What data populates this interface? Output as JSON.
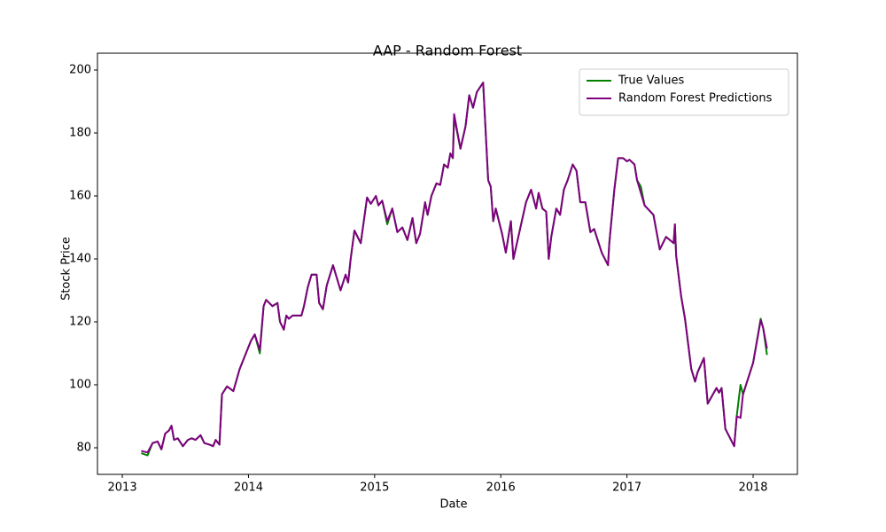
{
  "chart_data": {
    "type": "line",
    "title": "AAP - Random Forest",
    "xlabel": "Date",
    "ylabel": "Stock Price",
    "x": [
      2013.15,
      2013.2,
      2013.24,
      2013.28,
      2013.31,
      2013.34,
      2013.37,
      2013.39,
      2013.41,
      2013.44,
      2013.48,
      2013.52,
      2013.55,
      2013.58,
      2013.62,
      2013.65,
      2013.69,
      2013.72,
      2013.74,
      2013.77,
      2013.79,
      2013.83,
      2013.88,
      2013.93,
      2013.97,
      2014.02,
      2014.05,
      2014.09,
      2014.12,
      2014.14,
      2014.19,
      2014.23,
      2014.25,
      2014.28,
      2014.3,
      2014.32,
      2014.35,
      2014.42,
      2014.44,
      2014.47,
      2014.5,
      2014.54,
      2014.56,
      2014.59,
      2014.62,
      2014.67,
      2014.73,
      2014.77,
      2014.79,
      2014.81,
      2014.84,
      2014.89,
      2014.94,
      2014.97,
      2015.01,
      2015.03,
      2015.06,
      2015.1,
      2015.14,
      2015.18,
      2015.22,
      2015.26,
      2015.3,
      2015.33,
      2015.36,
      2015.4,
      2015.42,
      2015.45,
      2015.49,
      2015.52,
      2015.55,
      2015.58,
      2015.6,
      2015.62,
      2015.63,
      2015.68,
      2015.72,
      2015.75,
      2015.78,
      2015.81,
      2015.86,
      2015.9,
      2015.92,
      2015.94,
      2015.96,
      2016.01,
      2016.04,
      2016.08,
      2016.1,
      2016.15,
      2016.2,
      2016.24,
      2016.28,
      2016.3,
      2016.33,
      2016.36,
      2016.38,
      2016.4,
      2016.44,
      2016.47,
      2016.5,
      2016.53,
      2016.57,
      2016.6,
      2016.63,
      2016.67,
      2016.71,
      2016.74,
      2016.8,
      2016.85,
      2016.86,
      2016.9,
      2016.93,
      2016.97,
      2017.0,
      2017.02,
      2017.06,
      2017.08,
      2017.11,
      2017.14,
      2017.21,
      2017.26,
      2017.31,
      2017.37,
      2017.38,
      2017.39,
      2017.43,
      2017.46,
      2017.51,
      2017.54,
      2017.56,
      2017.61,
      2017.64,
      2017.71,
      2017.73,
      2017.75,
      2017.78,
      2017.85,
      2017.87,
      2017.9,
      2017.92,
      2018.0,
      2018.06,
      2018.08,
      2018.11
    ],
    "series": [
      {
        "name": "True Values",
        "color": "#008000",
        "values": [
          78.3,
          77.6,
          81.5,
          82,
          79.5,
          84.5,
          85.5,
          87,
          82.5,
          83,
          80.5,
          82.5,
          83,
          82.5,
          84,
          81.5,
          81,
          80.5,
          82.5,
          81,
          97,
          99.5,
          98,
          105,
          109,
          114,
          116,
          110,
          125,
          127,
          125,
          126,
          120,
          117.5,
          122,
          121,
          122,
          122,
          125,
          131,
          135,
          135,
          126,
          124,
          131.5,
          138,
          130,
          135,
          132.5,
          140,
          149,
          145,
          159.5,
          157.5,
          160,
          157,
          158.5,
          151,
          156,
          148.5,
          150,
          146,
          153,
          145,
          148,
          158,
          154,
          160,
          164,
          163.5,
          170,
          169,
          173.5,
          172,
          185,
          175,
          182,
          192,
          188,
          193,
          196,
          165,
          163,
          152,
          156,
          148,
          142,
          152,
          140,
          149,
          158,
          162,
          156,
          161,
          156,
          155,
          140,
          147,
          156,
          154,
          162,
          165,
          170,
          168,
          158,
          158,
          148.5,
          149.5,
          142,
          138,
          145,
          162,
          172,
          172,
          171,
          171.5,
          170,
          165,
          163,
          157,
          154,
          143,
          147,
          145,
          151,
          141,
          128,
          121,
          105,
          101,
          104,
          108.5,
          94,
          99,
          97.5,
          99,
          86,
          80.5,
          90,
          100,
          97,
          107,
          121,
          118,
          109.5
        ]
      },
      {
        "name": "Random Forest Predictions",
        "color": "#800080",
        "values": [
          79,
          78.5,
          81.5,
          82,
          79.5,
          84.5,
          85.5,
          87,
          82.5,
          83,
          80.5,
          82.5,
          83,
          82.5,
          84,
          81.5,
          81,
          80.5,
          82.5,
          81,
          97,
          99.5,
          98,
          105,
          109,
          114,
          116,
          111,
          125,
          127,
          125,
          126,
          120,
          117.5,
          122,
          121,
          122,
          122,
          125,
          131,
          135,
          135,
          126,
          124,
          131.5,
          138,
          130,
          135,
          132.5,
          140,
          149,
          145,
          159.5,
          157.5,
          160,
          157,
          158.5,
          152,
          156,
          148.5,
          150,
          146,
          153,
          145,
          148,
          158,
          154,
          160,
          164,
          163.5,
          170,
          169,
          173.5,
          172,
          186,
          175,
          182,
          192,
          188,
          193,
          196,
          165,
          163,
          152,
          156,
          148,
          142,
          152,
          140,
          149,
          158,
          162,
          156,
          161,
          156,
          155,
          140,
          147,
          156,
          154,
          162,
          165,
          170,
          168,
          158,
          158,
          148.5,
          149.5,
          142,
          138,
          145,
          162,
          172,
          172,
          171,
          171.5,
          170,
          165,
          161,
          157,
          154,
          143,
          147,
          145,
          151,
          141,
          128,
          121,
          105,
          101,
          104,
          108.5,
          94,
          99,
          97.5,
          99,
          86,
          80.5,
          90,
          89.5,
          97,
          107,
          120.5,
          118,
          111.5
        ]
      }
    ],
    "xlim": [
      2012.803,
      2018.351
    ],
    "xticks": [
      2013,
      2014,
      2015,
      2016,
      2017,
      2018
    ],
    "ylim": [
      71.55,
      205.35
    ],
    "yticks": [
      80,
      100,
      120,
      140,
      160,
      180,
      200
    ],
    "legend": "upper right"
  }
}
